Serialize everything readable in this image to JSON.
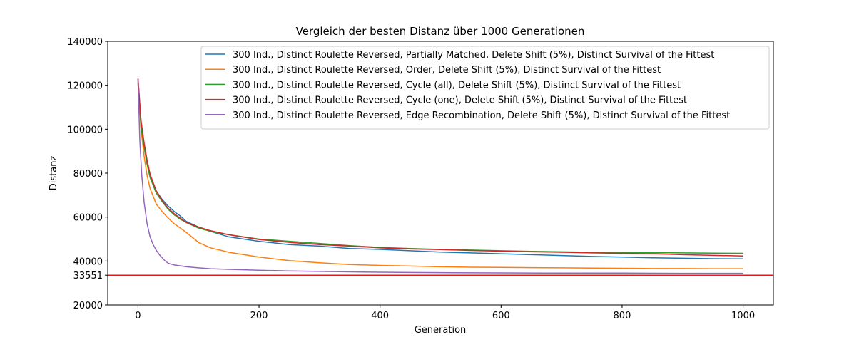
{
  "chart_data": {
    "type": "line",
    "title": "Vergleich der besten Distanz über 1000 Generationen",
    "xlabel": "Generation",
    "ylabel": "Distanz",
    "xlim": [
      -50,
      1050
    ],
    "ylim": [
      20000,
      140000
    ],
    "xticks": [
      0,
      200,
      400,
      600,
      800,
      1000
    ],
    "yticks": [
      20000,
      33551,
      40000,
      60000,
      80000,
      100000,
      120000,
      140000
    ],
    "grid": false,
    "legend_position": "top-right",
    "reference_line": {
      "y": 33551,
      "color": "#e31a1c"
    },
    "series": [
      {
        "name": "300 Ind., Distinct Roulette Reversed, Partially Matched, Delete Shift (5%), Distinct Survival of the Fittest",
        "color": "#1f77b4",
        "x": [
          0,
          5,
          10,
          15,
          20,
          30,
          40,
          50,
          60,
          70,
          80,
          100,
          120,
          150,
          200,
          250,
          300,
          350,
          400,
          450,
          500,
          550,
          600,
          650,
          700,
          750,
          800,
          850,
          900,
          950,
          1000
        ],
        "y": [
          123000,
          103000,
          93000,
          85000,
          79000,
          72000,
          68000,
          65000,
          62500,
          60500,
          58000,
          55500,
          53500,
          51000,
          49000,
          47500,
          46800,
          45700,
          45300,
          44700,
          44100,
          43700,
          43300,
          42900,
          42500,
          42100,
          41800,
          41500,
          41300,
          41100,
          41000
        ]
      },
      {
        "name": "300 Ind., Distinct Roulette Reversed, Order, Delete Shift (5%), Distinct Survival of the Fittest",
        "color": "#ff7f0e",
        "x": [
          0,
          5,
          10,
          15,
          20,
          30,
          40,
          50,
          60,
          70,
          80,
          100,
          120,
          150,
          200,
          250,
          300,
          350,
          400,
          450,
          500,
          550,
          600,
          650,
          700,
          750,
          800,
          850,
          900,
          950,
          1000
        ],
        "y": [
          122000,
          100000,
          88000,
          79000,
          73000,
          66000,
          62500,
          59500,
          57000,
          55000,
          53000,
          48500,
          46000,
          44000,
          41800,
          40200,
          39200,
          38400,
          38000,
          37700,
          37400,
          37200,
          37100,
          37000,
          36900,
          36800,
          36700,
          36600,
          36600,
          36500,
          36500
        ]
      },
      {
        "name": "300 Ind., Distinct Roulette Reversed, Cycle (all), Delete Shift (5%), Distinct Survival of the Fittest",
        "color": "#2ca02c",
        "x": [
          0,
          5,
          10,
          15,
          20,
          30,
          40,
          50,
          60,
          70,
          80,
          100,
          120,
          150,
          200,
          250,
          300,
          350,
          400,
          450,
          500,
          550,
          600,
          650,
          700,
          750,
          800,
          850,
          900,
          950,
          1000
        ],
        "y": [
          121000,
          101000,
          92000,
          84000,
          78000,
          71000,
          67000,
          63500,
          61000,
          59000,
          57500,
          55000,
          53500,
          52000,
          50000,
          49000,
          48000,
          47000,
          46200,
          45700,
          45300,
          45000,
          44700,
          44400,
          44200,
          44000,
          43900,
          43800,
          43700,
          43600,
          43500
        ]
      },
      {
        "name": "300 Ind., Distinct Roulette Reversed, Cycle (one), Delete Shift (5%), Distinct Survival of the Fittest",
        "color": "#d62728",
        "x": [
          0,
          5,
          10,
          15,
          20,
          30,
          40,
          50,
          60,
          70,
          80,
          100,
          120,
          150,
          200,
          250,
          300,
          350,
          400,
          450,
          500,
          550,
          600,
          650,
          700,
          750,
          800,
          850,
          900,
          950,
          1000
        ],
        "y": [
          123500,
          104000,
          94000,
          86000,
          79500,
          72000,
          67500,
          64000,
          61500,
          59500,
          57500,
          55500,
          53800,
          52000,
          49800,
          48500,
          47500,
          46800,
          46000,
          45500,
          45200,
          44800,
          44500,
          44200,
          44000,
          43700,
          43500,
          43300,
          42900,
          42600,
          42300
        ]
      },
      {
        "name": "300 Ind., Distinct Roulette Reversed, Edge Recombination, Delete Shift (5%), Distinct Survival of the Fittest",
        "color": "#9467bd",
        "x": [
          0,
          3,
          6,
          10,
          15,
          20,
          25,
          30,
          35,
          40,
          45,
          50,
          60,
          70,
          80,
          100,
          120,
          150,
          200,
          250,
          300,
          350,
          400,
          450,
          500,
          600,
          700,
          800,
          900,
          1000
        ],
        "y": [
          123000,
          95000,
          80000,
          67000,
          57000,
          51000,
          47500,
          45000,
          43000,
          41500,
          40000,
          39000,
          38200,
          37800,
          37400,
          36900,
          36500,
          36200,
          35800,
          35500,
          35300,
          35100,
          34900,
          34800,
          34700,
          34600,
          34500,
          34500,
          34400,
          34400
        ]
      }
    ]
  }
}
